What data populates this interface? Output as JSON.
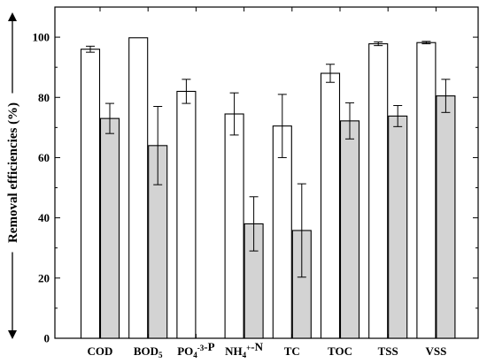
{
  "chart_data": {
    "type": "bar",
    "title": "",
    "xlabel": "",
    "ylabel": "Removal efficiencies (%)",
    "ylim": [
      0,
      110
    ],
    "yticks": [
      0,
      20,
      40,
      60,
      80,
      100
    ],
    "grid": false,
    "legend": "none",
    "categories": [
      {
        "parts": [
          {
            "t": "COD"
          }
        ]
      },
      {
        "parts": [
          {
            "t": "BOD"
          },
          {
            "t": "5",
            "s": "sub"
          }
        ]
      },
      {
        "parts": [
          {
            "t": "PO"
          },
          {
            "t": "4",
            "s": "sub"
          },
          {
            "t": "-3",
            "s": "sup"
          },
          {
            "t": "-P"
          }
        ]
      },
      {
        "parts": [
          {
            "t": "NH"
          },
          {
            "t": "4",
            "s": "sub"
          },
          {
            "t": "+",
            "s": "sup"
          },
          {
            "t": "-N"
          }
        ]
      },
      {
        "parts": [
          {
            "t": "TC"
          }
        ]
      },
      {
        "parts": [
          {
            "t": "TOC"
          }
        ]
      },
      {
        "parts": [
          {
            "t": "TSS"
          }
        ]
      },
      {
        "parts": [
          {
            "t": "VSS"
          }
        ]
      }
    ],
    "series": [
      {
        "color": "#ffffff",
        "values": [
          96.0,
          99.8,
          82.0,
          74.5,
          70.5,
          88.0,
          97.8,
          98.2
        ],
        "errors": [
          1.0,
          null,
          4.0,
          7.0,
          10.5,
          3.0,
          0.6,
          0.4
        ]
      },
      {
        "color": "#d3d3d3",
        "values": [
          73.0,
          64.0,
          null,
          38.0,
          35.8,
          72.2,
          73.8,
          80.5
        ],
        "errors": [
          5.0,
          13.0,
          null,
          9.0,
          15.5,
          6.0,
          3.5,
          5.5
        ]
      }
    ]
  }
}
